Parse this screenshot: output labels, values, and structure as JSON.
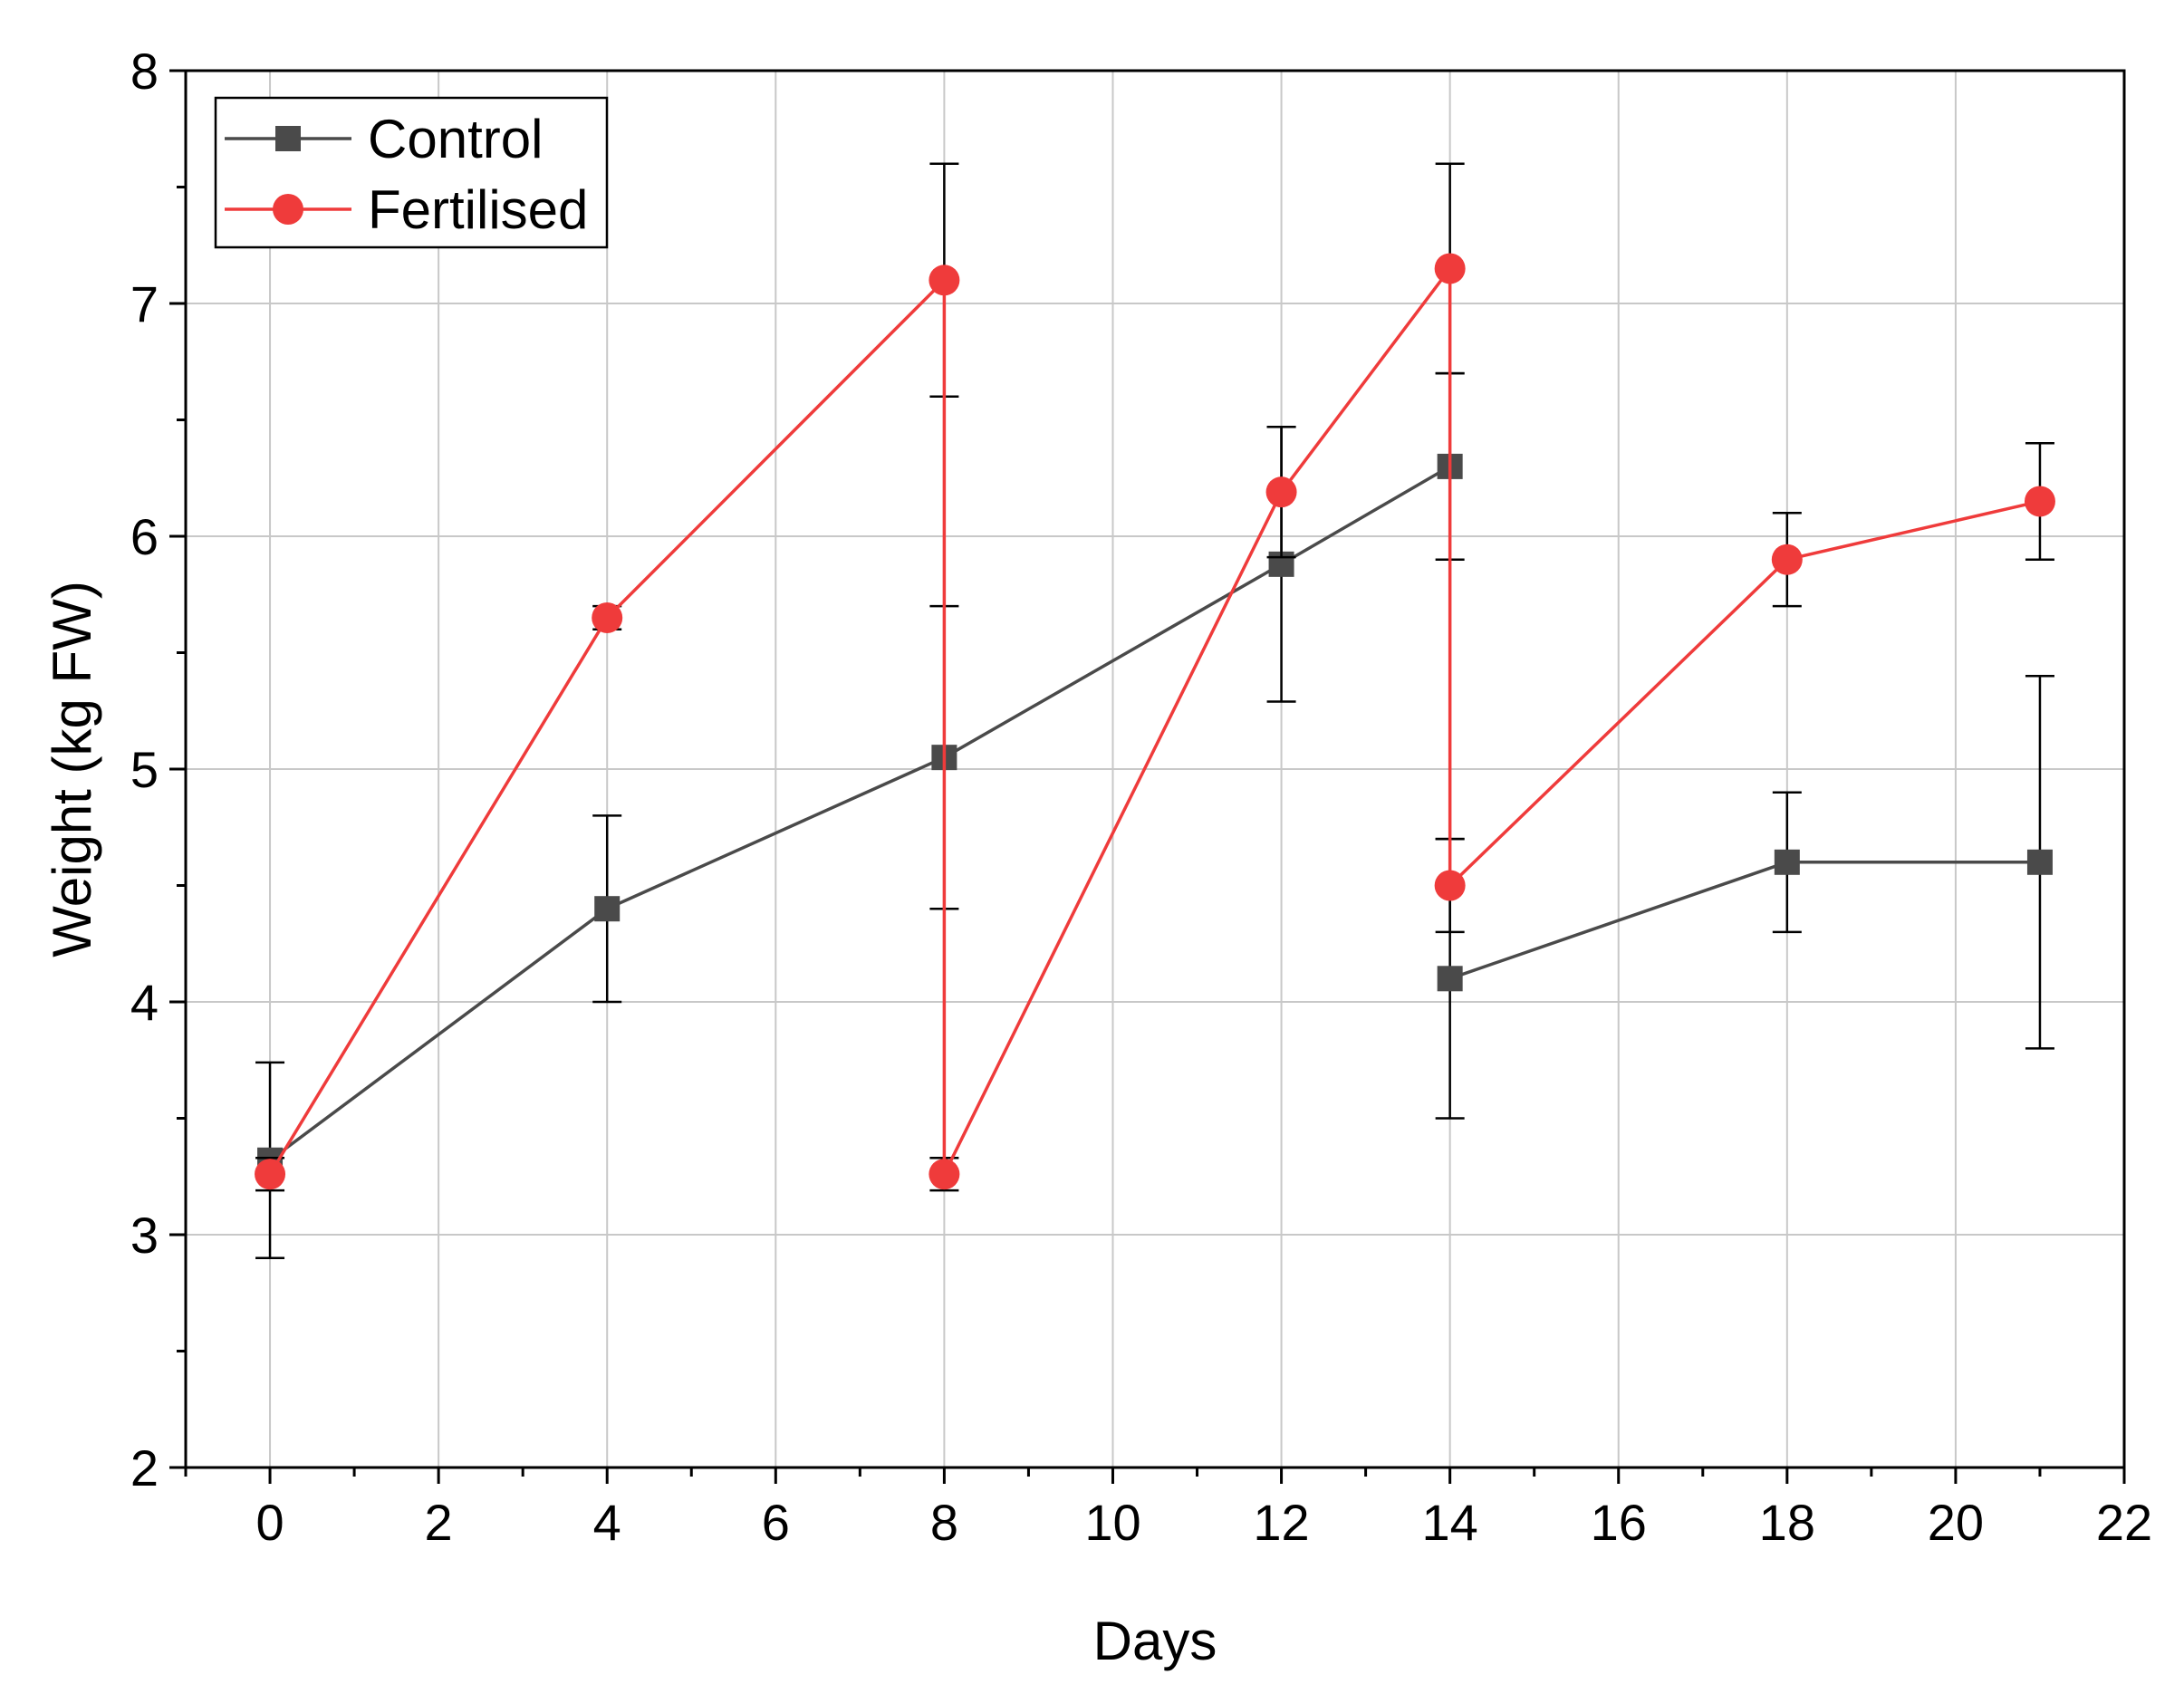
{
  "chart_data": {
    "type": "line",
    "title": "",
    "xlabel": "Days",
    "ylabel": "Weight (kg FW)",
    "xlim": [
      -1,
      22
    ],
    "ylim": [
      2,
      8
    ],
    "x_ticks": [
      0,
      2,
      4,
      6,
      8,
      10,
      12,
      14,
      16,
      18,
      20,
      22
    ],
    "y_ticks": [
      2,
      3,
      4,
      5,
      6,
      7,
      8
    ],
    "grid": true,
    "legend_position": "top-left",
    "series": [
      {
        "name": "Control",
        "color": "#4a4a4a",
        "marker": "square",
        "segments": [
          [
            {
              "x": 0,
              "y": 3.32,
              "err": 0.42
            },
            {
              "x": 4,
              "y": 4.4,
              "err": 0.4
            },
            {
              "x": 8,
              "y": 5.05,
              "err": 0.65
            },
            {
              "x": 12,
              "y": 5.88,
              "err": 0.59
            },
            {
              "x": 14,
              "y": 6.3,
              "err": 0.4
            }
          ],
          [
            {
              "x": 14,
              "y": 4.1,
              "err": 0.6
            },
            {
              "x": 18,
              "y": 4.6,
              "err": 0.3
            },
            {
              "x": 21,
              "y": 4.6,
              "err": 0.8
            }
          ]
        ]
      },
      {
        "name": "Fertilised",
        "color": "#ef3b3b",
        "marker": "circle",
        "segments": [
          [
            {
              "x": 0,
              "y": 3.26,
              "err": 0.07
            },
            {
              "x": 4,
              "y": 5.65,
              "err": 0.05
            },
            {
              "x": 8,
              "y": 7.1,
              "err": 0.5
            },
            {
              "x": 8,
              "y": 3.26,
              "err": 0.07
            },
            {
              "x": 12,
              "y": 6.19,
              "err": 0.28
            },
            {
              "x": 14,
              "y": 7.15,
              "err": 0.45
            },
            {
              "x": 14,
              "y": 4.5,
              "err": 0.2
            },
            {
              "x": 18,
              "y": 5.9,
              "err": 0.2
            },
            {
              "x": 21,
              "y": 6.15,
              "err": 0.25
            }
          ]
        ]
      }
    ]
  }
}
